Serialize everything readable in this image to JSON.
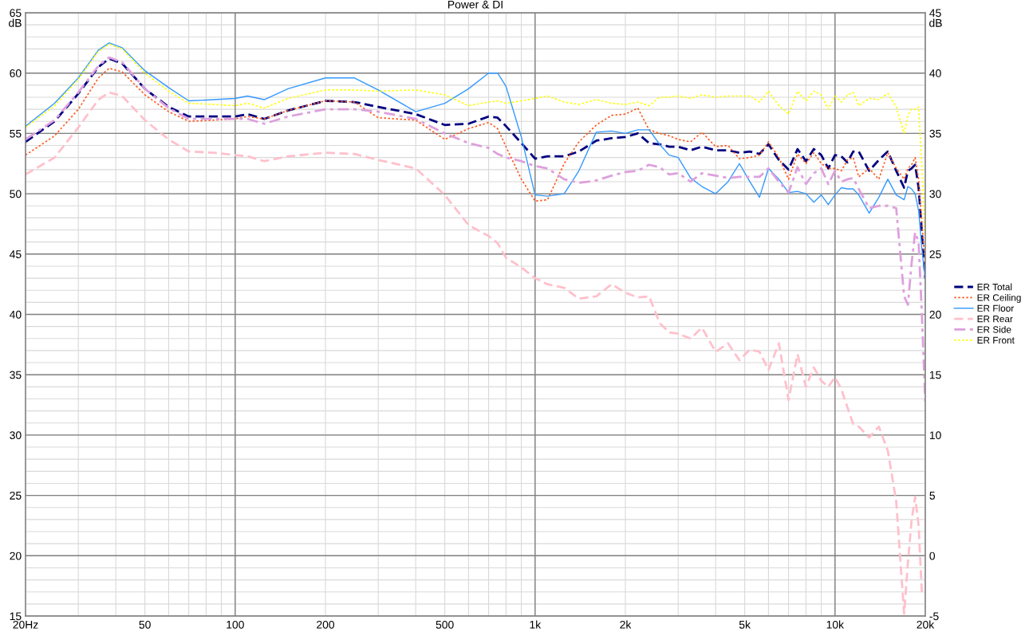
{
  "chart_data": {
    "type": "line",
    "title": "Power & DI",
    "ylabel": "dB",
    "y2label": "dB",
    "x": [
      20,
      25,
      30,
      35,
      38,
      42,
      50,
      60,
      70,
      85,
      100,
      110,
      125,
      150,
      200,
      250,
      300,
      400,
      500,
      600,
      700,
      750,
      800,
      900,
      1000,
      1100,
      1250,
      1400,
      1600,
      1800,
      2000,
      2200,
      2400,
      2600,
      2800,
      3000,
      3300,
      3600,
      4000,
      4400,
      4800,
      5200,
      5600,
      6000,
      6500,
      7000,
      7500,
      8000,
      8500,
      9000,
      9500,
      10000,
      10500,
      11000,
      11500,
      12000,
      13000,
      14000,
      15000,
      16000,
      17000,
      17500,
      18000,
      18500,
      19000,
      19500,
      20000
    ],
    "series": [
      {
        "name": "ER Total",
        "color": "#000080",
        "line_style": "dashed",
        "values": [
          54.3,
          56.0,
          58.3,
          60.5,
          61.2,
          60.8,
          58.7,
          57.2,
          56.4,
          56.4,
          56.4,
          56.6,
          56.2,
          56.9,
          57.7,
          57.6,
          57.2,
          56.6,
          55.7,
          55.8,
          56.4,
          56.3,
          55.6,
          54.2,
          52.9,
          53.1,
          53.1,
          53.5,
          54.4,
          54.6,
          54.7,
          55.0,
          54.2,
          54.1,
          53.9,
          53.9,
          53.6,
          53.9,
          53.6,
          53.6,
          53.4,
          53.5,
          53.3,
          54.1,
          52.8,
          52.0,
          53.7,
          52.7,
          53.7,
          53.2,
          52.1,
          53.2,
          53.1,
          52.6,
          53.5,
          53.5,
          51.9,
          52.8,
          53.5,
          51.9,
          50.5,
          51.9,
          52.1,
          52.4,
          50.5,
          46.7,
          43.0
        ]
      },
      {
        "name": "ER Ceiling",
        "color": "#ff5a1f",
        "line_style": "dotted",
        "values": [
          53.2,
          54.8,
          57.0,
          59.6,
          60.4,
          60.1,
          58.2,
          56.8,
          56.0,
          56.1,
          56.2,
          56.4,
          56.2,
          56.9,
          57.7,
          57.6,
          56.3,
          56.1,
          54.5,
          55.4,
          55.9,
          55.4,
          53.9,
          51.2,
          49.4,
          49.5,
          52.5,
          54.3,
          55.7,
          56.5,
          56.6,
          57.1,
          55.3,
          55.0,
          54.8,
          54.5,
          54.3,
          55.1,
          53.9,
          54.0,
          52.9,
          53.0,
          53.2,
          54.3,
          53.0,
          51.2,
          53.3,
          52.5,
          53.4,
          52.5,
          52.1,
          52.1,
          51.9,
          52.8,
          53.0,
          51.4,
          52.1,
          51.2,
          53.4,
          52.1,
          51.2,
          52.1,
          52.4,
          53.0,
          51.2,
          47.5,
          44.0
        ]
      },
      {
        "name": "ER Floor",
        "color": "#3399ff",
        "line_style": "solid",
        "values": [
          55.6,
          57.5,
          59.6,
          61.9,
          62.5,
          62.1,
          60.2,
          58.8,
          57.7,
          57.8,
          57.9,
          58.1,
          57.8,
          58.7,
          59.6,
          59.6,
          58.6,
          56.8,
          57.5,
          58.7,
          60.0,
          60.0,
          58.9,
          54.7,
          49.9,
          49.8,
          50.0,
          51.9,
          55.1,
          55.2,
          55.0,
          55.3,
          55.3,
          54.1,
          53.2,
          53.0,
          51.3,
          50.6,
          50.0,
          51.0,
          52.5,
          51.0,
          49.7,
          52.1,
          51.2,
          50.1,
          50.2,
          50.0,
          49.3,
          49.9,
          49.1,
          49.9,
          50.5,
          50.4,
          50.4,
          49.9,
          48.4,
          49.7,
          51.2,
          49.9,
          49.5,
          50.6,
          50.4,
          50.0,
          48.6,
          45.3,
          42.9
        ]
      },
      {
        "name": "ER Rear",
        "color": "#ffc0cb",
        "line_style": "dashed",
        "values": [
          51.6,
          53.0,
          55.5,
          57.8,
          58.4,
          58.1,
          56.1,
          54.5,
          53.5,
          53.4,
          53.2,
          53.1,
          52.7,
          53.1,
          53.4,
          53.3,
          52.8,
          52.1,
          49.9,
          47.4,
          46.5,
          45.9,
          44.7,
          43.9,
          43.0,
          42.5,
          42.2,
          41.3,
          41.5,
          42.5,
          41.8,
          41.4,
          41.5,
          39.3,
          38.5,
          38.4,
          38.0,
          38.9,
          36.9,
          37.6,
          36.2,
          37.1,
          36.9,
          35.4,
          37.6,
          32.9,
          36.7,
          34.0,
          35.6,
          34.5,
          34.0,
          34.8,
          33.8,
          32.3,
          30.9,
          30.7,
          29.8,
          30.7,
          28.7,
          24.5,
          15.2,
          19.4,
          22.9,
          24.9,
          22.5,
          16.7,
          null
        ]
      },
      {
        "name": "ER Side",
        "color": "#dda0dd",
        "line_style": "dashdot",
        "values": [
          54.5,
          56.1,
          58.4,
          60.6,
          61.3,
          60.9,
          58.7,
          57.1,
          56.2,
          56.2,
          56.2,
          56.2,
          55.8,
          56.4,
          57.0,
          57.0,
          56.8,
          56.2,
          55.0,
          54.2,
          53.8,
          53.3,
          53.0,
          52.7,
          52.3,
          52.1,
          51.2,
          50.9,
          51.1,
          51.5,
          51.8,
          51.9,
          52.4,
          52.2,
          51.6,
          51.7,
          51.0,
          51.7,
          51.5,
          51.3,
          51.4,
          51.4,
          51.4,
          52.1,
          51.0,
          50.1,
          52.2,
          50.8,
          51.7,
          52.1,
          50.8,
          51.9,
          51.0,
          51.2,
          51.3,
          50.4,
          48.8,
          49.0,
          49.0,
          48.8,
          41.5,
          40.8,
          44.2,
          46.8,
          46.0,
          39.8,
          32.7
        ]
      },
      {
        "name": "ER Front",
        "color": "#ffff00",
        "line_style": "dotted",
        "values": [
          55.5,
          57.3,
          59.5,
          61.8,
          62.4,
          62.0,
          60.0,
          58.5,
          57.5,
          57.4,
          57.3,
          57.5,
          57.1,
          57.9,
          58.6,
          58.6,
          58.5,
          58.6,
          58.2,
          57.3,
          57.6,
          57.7,
          57.5,
          57.7,
          57.9,
          58.1,
          57.6,
          57.4,
          57.8,
          57.5,
          57.4,
          57.6,
          57.3,
          58.0,
          58.0,
          58.1,
          57.9,
          58.2,
          58.0,
          58.1,
          58.1,
          58.1,
          57.6,
          58.5,
          57.3,
          56.6,
          58.5,
          57.7,
          58.5,
          58.2,
          57.0,
          58.1,
          57.6,
          58.2,
          58.4,
          57.3,
          57.9,
          57.8,
          58.3,
          57.2,
          55.0,
          56.5,
          57.0,
          57.0,
          57.2,
          52.0,
          46.0
        ]
      }
    ],
    "log": "x",
    "xlim": [
      20,
      20000
    ],
    "xticks": [
      {
        "value": 20,
        "label": "20Hz"
      },
      50,
      100,
      200,
      500,
      {
        "value": 1000,
        "label": "1k"
      },
      {
        "value": 2000,
        "label": "2k"
      },
      {
        "value": 5000,
        "label": "5k"
      },
      {
        "value": 10000,
        "label": "10k"
      },
      {
        "value": 20000,
        "label": "20k"
      }
    ],
    "ylim": [
      15,
      65
    ],
    "yticks": [
      15,
      20,
      25,
      30,
      35,
      40,
      45,
      50,
      55,
      60,
      65
    ],
    "y2lim": [
      -5,
      45
    ],
    "y2ticks": [
      {
        "value": -5,
        "label": "-5"
      },
      0,
      5,
      10,
      15,
      20,
      25,
      30,
      35,
      40,
      45
    ],
    "grid": true,
    "legend": "right"
  }
}
